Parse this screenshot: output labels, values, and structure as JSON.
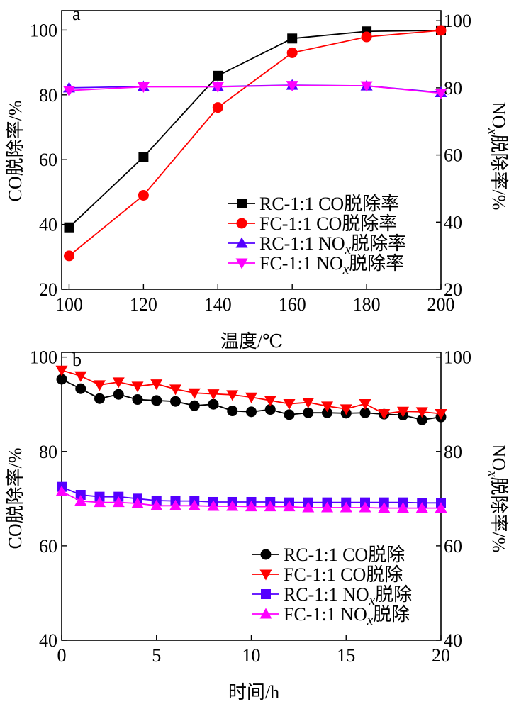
{
  "chart_data": [
    {
      "type": "line",
      "panel_label": "a",
      "xlabel": "温度/℃",
      "ylabel_left": "CO脱除率/%",
      "ylabel_right_prefix": "NO",
      "ylabel_right_sub": "x",
      "ylabel_right_suffix": "脱除率/%",
      "xlim": [
        98,
        200
      ],
      "xticks": [
        100,
        120,
        140,
        160,
        180,
        200
      ],
      "ylim_left": [
        20,
        106
      ],
      "yticks_left": [
        20,
        40,
        60,
        80,
        100
      ],
      "ylim_right": [
        20,
        103
      ],
      "yticks_right": [
        20,
        40,
        60,
        80,
        100
      ],
      "grid": false,
      "legend_position": "center-right",
      "series": [
        {
          "name": "RC-1:1  CO脱除率",
          "axis": "left",
          "color": "#000000",
          "marker": "square",
          "x": [
            100,
            120,
            140,
            160,
            180,
            200
          ],
          "y": [
            39.1,
            60.8,
            85.9,
            97.4,
            99.6,
            99.9
          ]
        },
        {
          "name": "FC-1:1  CO脱除率",
          "axis": "left",
          "color": "#ff0000",
          "marker": "circle",
          "x": [
            100,
            120,
            140,
            160,
            180,
            200
          ],
          "y": [
            30.3,
            49.0,
            76.1,
            93.0,
            97.9,
            99.9
          ]
        },
        {
          "name": "RC-1:1  NO",
          "name_sub": "x",
          "name_suffix": "脱除率",
          "axis": "right",
          "color": "#5500ff",
          "marker": "triangle-up",
          "x": [
            100,
            120,
            140,
            160,
            180,
            200
          ],
          "y": [
            80.0,
            80.4,
            80.4,
            80.8,
            80.6,
            78.6
          ]
        },
        {
          "name": "FC-1:1  NO",
          "name_sub": "x",
          "name_suffix": "脱除率",
          "axis": "right",
          "color": "#ff00ff",
          "marker": "triangle-down",
          "x": [
            100,
            120,
            140,
            160,
            180,
            200
          ],
          "y": [
            79.2,
            80.3,
            80.3,
            80.7,
            80.6,
            78.4
          ]
        }
      ]
    },
    {
      "type": "line",
      "panel_label": "b",
      "xlabel": "时间/h",
      "ylabel_left": "CO脱除率/%",
      "ylabel_right_prefix": "NO",
      "ylabel_right_sub": "x",
      "ylabel_right_suffix": "脱除率/%",
      "xlim": [
        0,
        20
      ],
      "xticks": [
        0,
        5,
        10,
        15,
        20
      ],
      "ylim_left": [
        40,
        101
      ],
      "yticks_left": [
        40,
        60,
        80,
        100
      ],
      "ylim_right": [
        40,
        101
      ],
      "yticks_right": [
        40,
        60,
        80,
        100
      ],
      "grid": false,
      "legend_position": "bottom-right",
      "series": [
        {
          "name": "RC-1:1  CO脱除",
          "axis": "left",
          "color": "#000000",
          "marker": "circle",
          "x": [
            0,
            1,
            2,
            3,
            4,
            5,
            6,
            7,
            8,
            9,
            10,
            11,
            12,
            13,
            14,
            15,
            16,
            17,
            18,
            19,
            20
          ],
          "y": [
            95.3,
            93.3,
            91.2,
            92.1,
            91.0,
            90.8,
            90.6,
            89.7,
            90.0,
            88.6,
            88.4,
            88.9,
            87.8,
            88.2,
            88.2,
            88.1,
            88.2,
            87.9,
            87.7,
            86.7,
            87.3
          ]
        },
        {
          "name": "FC-1:1  CO脱除",
          "axis": "left",
          "color": "#ff0000",
          "marker": "triangle-down",
          "x": [
            0,
            1,
            2,
            3,
            4,
            5,
            6,
            7,
            8,
            9,
            10,
            11,
            12,
            13,
            14,
            15,
            16,
            17,
            18,
            19,
            20
          ],
          "y": [
            97.2,
            96.0,
            94.1,
            94.7,
            93.8,
            94.3,
            93.2,
            92.4,
            92.2,
            92.0,
            91.5,
            90.8,
            90.1,
            90.4,
            89.6,
            89.0,
            90.1,
            88.0,
            88.5,
            88.4,
            88.0
          ]
        },
        {
          "name": "RC-1:1  NO",
          "name_sub": "x",
          "name_suffix": "脱除",
          "axis": "right",
          "color": "#5500ff",
          "marker": "square",
          "x": [
            0,
            1,
            2,
            3,
            4,
            5,
            6,
            7,
            8,
            9,
            10,
            11,
            12,
            13,
            14,
            15,
            16,
            17,
            18,
            19,
            20
          ],
          "y": [
            72.5,
            70.8,
            70.4,
            70.4,
            70.0,
            69.6,
            69.5,
            69.5,
            69.3,
            69.3,
            69.3,
            69.3,
            69.2,
            69.2,
            69.2,
            69.2,
            69.2,
            69.2,
            69.2,
            69.1,
            69.1
          ]
        },
        {
          "name": "FC-1:1  NO",
          "name_sub": "x",
          "name_suffix": "脱除",
          "axis": "right",
          "color": "#ff00ff",
          "marker": "triangle-up",
          "x": [
            0,
            1,
            2,
            3,
            4,
            5,
            6,
            7,
            8,
            9,
            10,
            11,
            12,
            13,
            14,
            15,
            16,
            17,
            18,
            19,
            20
          ],
          "y": [
            71.5,
            69.5,
            69.2,
            69.2,
            69.0,
            68.5,
            68.5,
            68.5,
            68.4,
            68.4,
            68.3,
            68.3,
            68.3,
            68.1,
            68.1,
            68.1,
            68.1,
            68.0,
            68.0,
            68.0,
            68.0
          ]
        }
      ]
    }
  ]
}
